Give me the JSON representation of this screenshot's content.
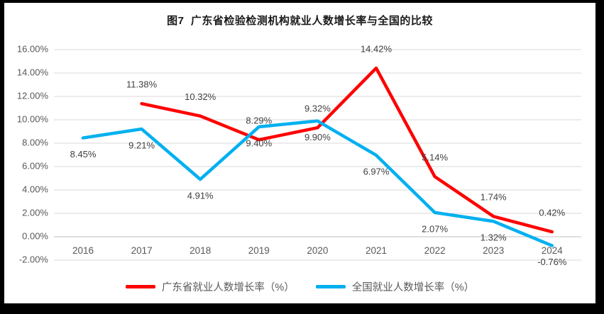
{
  "title": "图7  广东省检验检测机构就业人数增长率与全国的比较",
  "chart_data": {
    "type": "line",
    "title": "图7  广东省检验检测机构就业人数增长率与全国的比较",
    "categories": [
      "2016",
      "2017",
      "2018",
      "2019",
      "2020",
      "2021",
      "2022",
      "2023",
      "2024"
    ],
    "series": [
      {
        "name": "广东省就业人数增长率（%）",
        "color": "#FF0000",
        "label_position": "above",
        "values": [
          null,
          11.38,
          10.32,
          8.29,
          9.32,
          14.42,
          5.14,
          1.74,
          0.42
        ],
        "data_labels": [
          "",
          "11.38%",
          "10.32%",
          "8.29%",
          "9.32%",
          "14.42%",
          "5.14%",
          "1.74%",
          "0.42%"
        ]
      },
      {
        "name": "全国就业人数增长率（%）",
        "color": "#00B0F0",
        "label_position": "below",
        "values": [
          8.45,
          9.21,
          4.91,
          9.4,
          9.9,
          6.97,
          2.07,
          1.32,
          -0.76
        ],
        "data_labels": [
          "8.45%",
          "9.21%",
          "4.91%",
          "9.40%",
          "9.90%",
          "6.97%",
          "2.07%",
          "1.32%",
          "-0.76%"
        ]
      }
    ],
    "y_axis": {
      "min": -2,
      "max": 16,
      "step": 2,
      "tick_labels": [
        "16.00%",
        "14.00%",
        "12.00%",
        "10.00%",
        "8.00%",
        "6.00%",
        "4.00%",
        "2.00%",
        "0.00%",
        "-2.00%"
      ]
    },
    "x_axis": {
      "tick_labels": [
        "2016",
        "2017",
        "2018",
        "2019",
        "2020",
        "2021",
        "2022",
        "2023",
        "2024"
      ]
    },
    "grid": true,
    "data_labels_on": true,
    "legend_position": "bottom",
    "colors": {
      "grid_line": "#D9D9D9",
      "zero_axis_line": "#BFBFBF",
      "axis_tick_text": "#595959",
      "data_label_text": "#404040",
      "legend_text": "#595959",
      "frame_border": "#000000",
      "background": "#FFFFFF"
    }
  }
}
